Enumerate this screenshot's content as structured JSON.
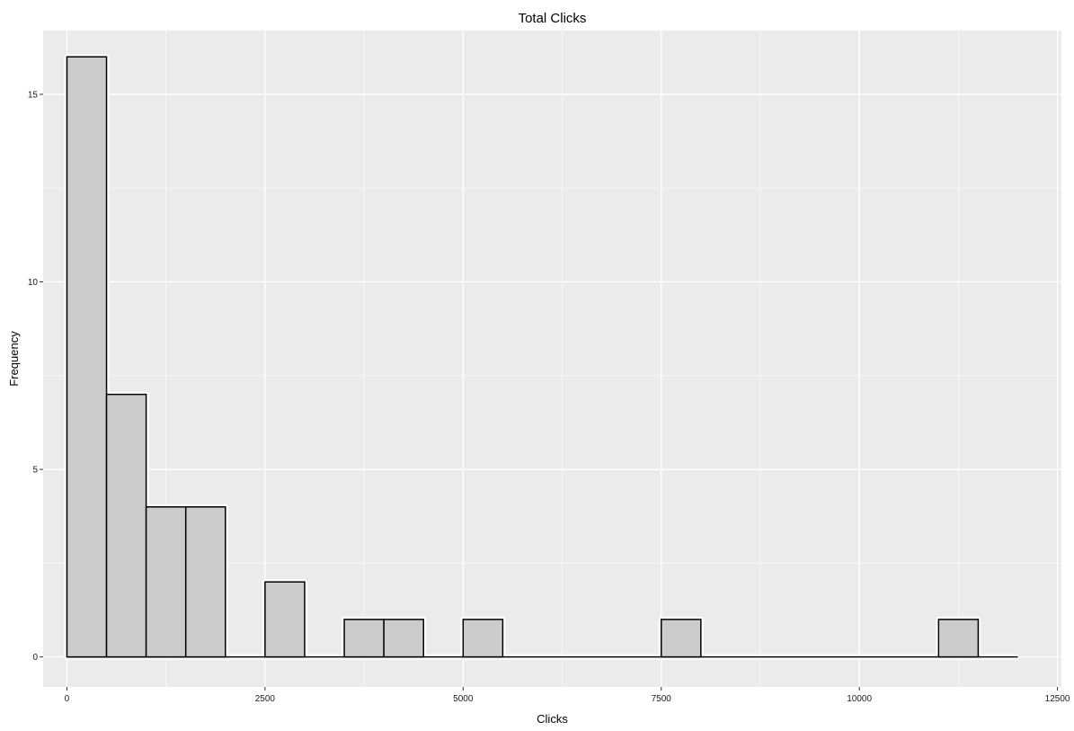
{
  "chart_data": {
    "type": "bar",
    "subtype": "histogram",
    "title": "Total Clicks",
    "xlabel": "Clicks",
    "ylabel": "Frequency",
    "xlim": [
      -300,
      12550
    ],
    "ylim": [
      -0.8,
      16.7
    ],
    "x_ticks": [
      0,
      2500,
      5000,
      7500,
      10000,
      12500
    ],
    "x_tick_labels": [
      "0",
      "2500",
      "5000",
      "7500",
      "10000",
      "12500"
    ],
    "y_ticks": [
      0,
      5,
      10,
      15
    ],
    "y_tick_labels": [
      "0",
      "5",
      "10",
      "15"
    ],
    "bin_width": 500,
    "bin_start": 0,
    "bin_end": 12000,
    "bins": [
      {
        "x0": 0,
        "x1": 500,
        "count": 16
      },
      {
        "x0": 500,
        "x1": 1000,
        "count": 7
      },
      {
        "x0": 1000,
        "x1": 1500,
        "count": 4
      },
      {
        "x0": 1500,
        "x1": 2000,
        "count": 4
      },
      {
        "x0": 2000,
        "x1": 2500,
        "count": 0
      },
      {
        "x0": 2500,
        "x1": 3000,
        "count": 2
      },
      {
        "x0": 3000,
        "x1": 3500,
        "count": 0
      },
      {
        "x0": 3500,
        "x1": 4000,
        "count": 1
      },
      {
        "x0": 4000,
        "x1": 4500,
        "count": 1
      },
      {
        "x0": 4500,
        "x1": 5000,
        "count": 0
      },
      {
        "x0": 5000,
        "x1": 5500,
        "count": 1
      },
      {
        "x0": 5500,
        "x1": 6000,
        "count": 0
      },
      {
        "x0": 6000,
        "x1": 6500,
        "count": 0
      },
      {
        "x0": 6500,
        "x1": 7000,
        "count": 0
      },
      {
        "x0": 7000,
        "x1": 7500,
        "count": 0
      },
      {
        "x0": 7500,
        "x1": 8000,
        "count": 1
      },
      {
        "x0": 8000,
        "x1": 8500,
        "count": 0
      },
      {
        "x0": 8500,
        "x1": 9000,
        "count": 0
      },
      {
        "x0": 9000,
        "x1": 9500,
        "count": 0
      },
      {
        "x0": 9500,
        "x1": 10000,
        "count": 0
      },
      {
        "x0": 10000,
        "x1": 10500,
        "count": 0
      },
      {
        "x0": 10500,
        "x1": 11000,
        "count": 0
      },
      {
        "x0": 11000,
        "x1": 11500,
        "count": 1
      },
      {
        "x0": 11500,
        "x1": 12000,
        "count": 0
      }
    ],
    "grid": true,
    "legend": "none",
    "colors": {
      "panel_background": "#ebebeb",
      "grid_major": "#ffffff",
      "bar_fill": "#cccccc",
      "bar_outline": "#000000",
      "bar_halo": "#ffffff"
    }
  }
}
